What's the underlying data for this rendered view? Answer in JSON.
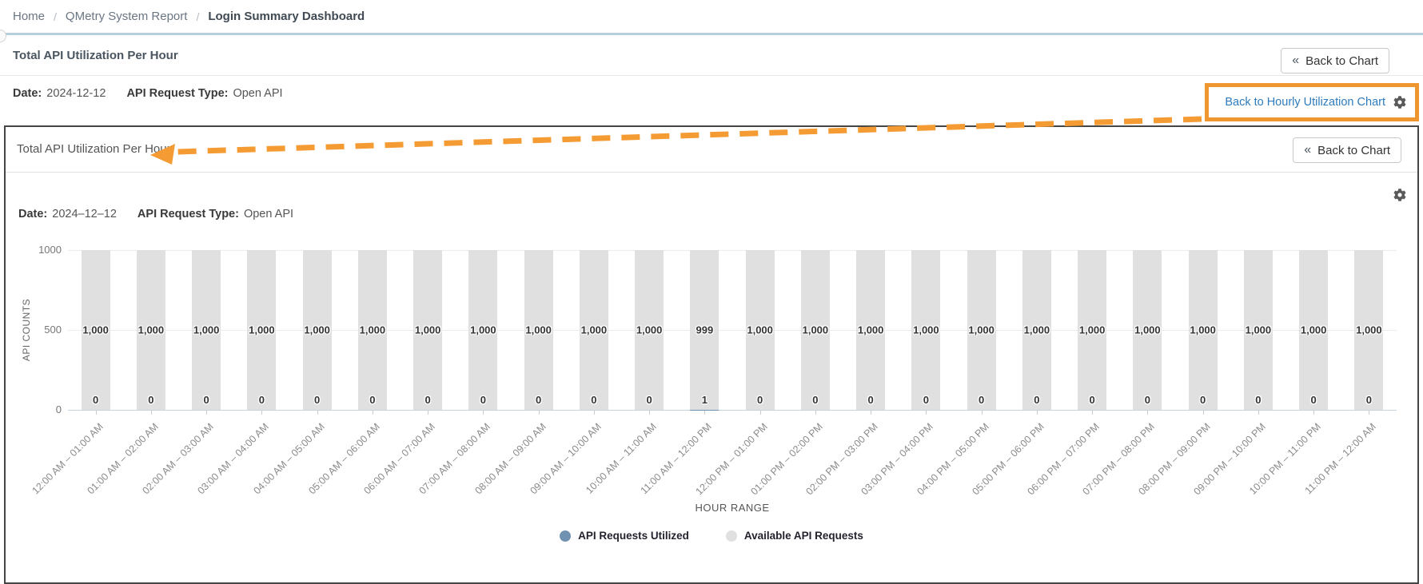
{
  "breadcrumb": {
    "separator": "/",
    "items": [
      "Home",
      "QMetry System Report",
      "Login Summary Dashboard"
    ]
  },
  "outer": {
    "title": "Total API Utilization Per Hour",
    "back_button": {
      "chevron": "«",
      "label": "Back to Chart"
    },
    "date_label": "Date:",
    "date_value": "2024-12-12",
    "type_label": "API Request Type:",
    "type_value": "Open API",
    "highlight_link": "Back to Hourly Utilization Chart"
  },
  "panel": {
    "title": "Total API Utilization Per Hour",
    "back_button": {
      "chevron": "«",
      "label": "Back to Chart"
    },
    "date_label": "Date:",
    "date_value": "2024–12–12",
    "type_label": "API Request Type:",
    "type_value": "Open API"
  },
  "colors": {
    "annotation_orange": "#f0962e",
    "link_blue": "#2e7cbd",
    "bar_utilized_blue": "#7191b1",
    "bar_available_gray": "#e0e0e0",
    "breadcrumb_divider_blue": "#b6cfdf"
  },
  "chart_data": {
    "type": "bar",
    "stacked": true,
    "xlabel": "HOUR RANGE",
    "ylabel": "API COUNTS",
    "ylim": [
      0,
      1000
    ],
    "yticks": [
      0,
      500,
      1000
    ],
    "grid": true,
    "legend_position": "bottom",
    "categories": [
      "12:00 AM – 01:00 AM",
      "01:00 AM – 02:00 AM",
      "02:00 AM – 03:00 AM",
      "03:00 AM – 04:00 AM",
      "04:00 AM – 05:00 AM",
      "05:00 AM – 06:00 AM",
      "06:00 AM – 07:00 AM",
      "07:00 AM – 08:00 AM",
      "08:00 AM – 09:00 AM",
      "09:00 AM – 10:00 AM",
      "10:00 AM – 11:00 AM",
      "11:00 AM – 12:00 PM",
      "12:00 PM – 01:00 PM",
      "01:00 PM – 02:00 PM",
      "02:00 PM – 03:00 PM",
      "03:00 PM – 04:00 PM",
      "04:00 PM – 05:00 PM",
      "05:00 PM – 06:00 PM",
      "06:00 PM – 07:00 PM",
      "07:00 PM – 08:00 PM",
      "08:00 PM – 09:00 PM",
      "09:00 PM – 10:00 PM",
      "10:00 PM – 11:00 PM",
      "11:00 PM – 12:00 AM"
    ],
    "series": [
      {
        "name": "API Requests Utilized",
        "color": "#7191b1",
        "values": [
          0,
          0,
          0,
          0,
          0,
          0,
          0,
          0,
          0,
          0,
          0,
          1,
          0,
          0,
          0,
          0,
          0,
          0,
          0,
          0,
          0,
          0,
          0,
          0
        ]
      },
      {
        "name": "Available API Requests",
        "color": "#e0e0e0",
        "values": [
          1000,
          1000,
          1000,
          1000,
          1000,
          1000,
          1000,
          1000,
          1000,
          1000,
          1000,
          999,
          1000,
          1000,
          1000,
          1000,
          1000,
          1000,
          1000,
          1000,
          1000,
          1000,
          1000,
          1000
        ]
      }
    ]
  }
}
